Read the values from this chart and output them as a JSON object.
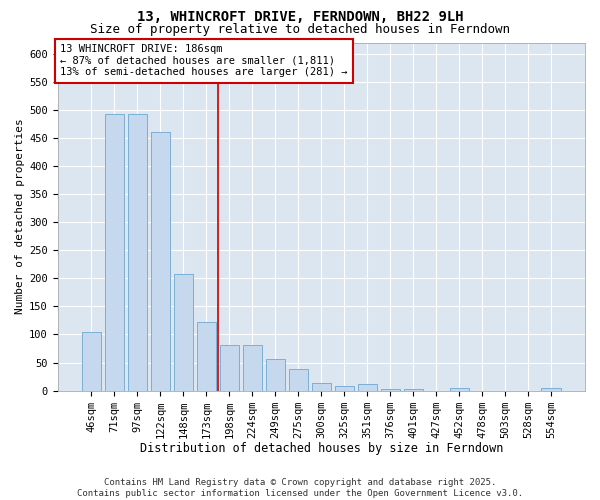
{
  "title": "13, WHINCROFT DRIVE, FERNDOWN, BH22 9LH",
  "subtitle": "Size of property relative to detached houses in Ferndown",
  "xlabel": "Distribution of detached houses by size in Ferndown",
  "ylabel": "Number of detached properties",
  "categories": [
    "46sqm",
    "71sqm",
    "97sqm",
    "122sqm",
    "148sqm",
    "173sqm",
    "198sqm",
    "224sqm",
    "249sqm",
    "275sqm",
    "300sqm",
    "325sqm",
    "351sqm",
    "376sqm",
    "401sqm",
    "427sqm",
    "452sqm",
    "478sqm",
    "503sqm",
    "528sqm",
    "554sqm"
  ],
  "values": [
    105,
    493,
    493,
    460,
    207,
    123,
    82,
    82,
    57,
    38,
    13,
    8,
    12,
    3,
    2,
    0,
    5,
    0,
    0,
    0,
    5
  ],
  "bar_color": "#c5d8ee",
  "bar_edge_color": "#7aafd4",
  "background_color": "#dce6f1",
  "grid_color": "#ffffff",
  "vline_color": "#cc0000",
  "annotation_text": "13 WHINCROFT DRIVE: 186sqm\n← 87% of detached houses are smaller (1,811)\n13% of semi-detached houses are larger (281) →",
  "annotation_box_color": "#cc0000",
  "footer_text": "Contains HM Land Registry data © Crown copyright and database right 2025.\nContains public sector information licensed under the Open Government Licence v3.0.",
  "ylim": [
    0,
    620
  ],
  "yticks": [
    0,
    50,
    100,
    150,
    200,
    250,
    300,
    350,
    400,
    450,
    500,
    550,
    600
  ],
  "title_fontsize": 10,
  "subtitle_fontsize": 9,
  "xlabel_fontsize": 8.5,
  "ylabel_fontsize": 8,
  "tick_fontsize": 7.5,
  "footer_fontsize": 6.5,
  "annotation_fontsize": 7.5
}
